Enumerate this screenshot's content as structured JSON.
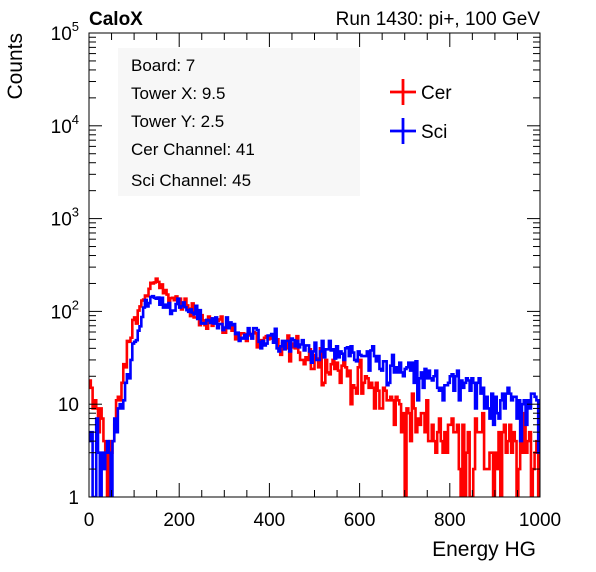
{
  "header": {
    "brand": "CaloX",
    "run_info": "Run 1430: pi+, 100 GeV"
  },
  "info_box": {
    "lines": [
      "Board: 7",
      "Tower X: 9.5",
      "Tower Y: 2.5",
      "Cer Channel: 41",
      "Sci Channel: 45"
    ]
  },
  "chart_data": {
    "type": "line",
    "style": "step-histogram",
    "title": "",
    "xlabel": "Energy HG",
    "ylabel": "Counts",
    "xlim": [
      0,
      1000
    ],
    "ylim": [
      1,
      100000
    ],
    "yscale": "log",
    "grid": false,
    "legend_position": "top-right",
    "x_tick_labels": [
      "0",
      "200",
      "400",
      "600",
      "800",
      "1000"
    ],
    "y_tick_labels": [
      {
        "base": "1",
        "exp": ""
      },
      {
        "base": "10",
        "exp": ""
      },
      {
        "base": "10",
        "exp": "2"
      },
      {
        "base": "10",
        "exp": "3"
      },
      {
        "base": "10",
        "exp": "4"
      },
      {
        "base": "10",
        "exp": "5"
      }
    ],
    "series": [
      {
        "name": "Cer",
        "color": "#ff0000",
        "x": [
          0,
          50,
          75,
          90,
          100,
          110,
          120,
          130,
          140,
          145,
          150,
          160,
          170,
          180,
          200,
          220,
          250,
          300,
          350,
          400,
          450,
          500,
          550,
          600,
          650,
          700,
          750,
          800,
          850,
          900,
          950,
          1000
        ],
        "values": [
          14,
          3,
          18,
          50,
          80,
          105,
          130,
          160,
          195,
          210,
          200,
          175,
          160,
          145,
          125,
          105,
          88,
          70,
          55,
          45,
          40,
          32,
          26,
          18,
          12,
          8,
          6,
          5,
          4,
          3,
          3,
          3
        ]
      },
      {
        "name": "Sci",
        "color": "#0000ff",
        "x": [
          0,
          50,
          75,
          90,
          100,
          110,
          120,
          130,
          140,
          145,
          150,
          160,
          170,
          180,
          200,
          220,
          250,
          300,
          350,
          400,
          450,
          500,
          550,
          600,
          650,
          700,
          750,
          800,
          850,
          900,
          950,
          1000
        ],
        "values": [
          4,
          3,
          10,
          25,
          45,
          70,
          95,
          120,
          140,
          150,
          135,
          128,
          120,
          115,
          115,
          102,
          85,
          72,
          58,
          48,
          44,
          38,
          36,
          32,
          26,
          22,
          18,
          16,
          14,
          12,
          10,
          9
        ]
      }
    ]
  }
}
